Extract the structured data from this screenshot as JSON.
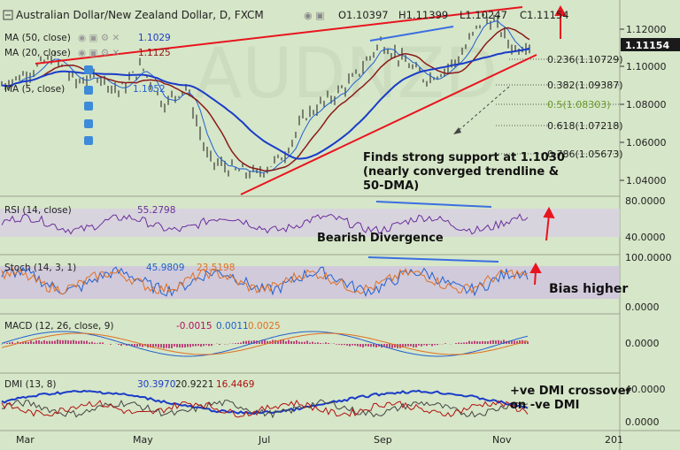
{
  "header": {
    "title": "Australian Dollar/New Zealand Dollar, D, FXCM",
    "ohlc": [
      "O1.10397",
      "H1.11399",
      "L1.10247",
      "C1.11154"
    ]
  },
  "ma_legend": [
    {
      "label": "MA (50, close)",
      "value": "1.1029",
      "color": "#1a3cc8"
    },
    {
      "label": "MA (20, close)",
      "value": "1.1125",
      "color": "#8b1a1a"
    },
    {
      "label": "MA (5, close)",
      "value": "1.1052",
      "color": "#2060d0"
    }
  ],
  "price_axis": {
    "ticks": [
      "1.12000",
      "1.10000",
      "1.08000",
      "1.06000",
      "1.04000"
    ],
    "last_price": "1.11154"
  },
  "fib_levels": [
    {
      "label": "0.236(1.10729)"
    },
    {
      "label": "0.382(1.09387)"
    },
    {
      "label": "0.5(1.08303)"
    },
    {
      "label": "0.618(1.07218)"
    },
    {
      "label": "0.786(1.05673)"
    }
  ],
  "annotations": {
    "support_text": [
      "Finds strong support at 1.1030",
      "(nearly converged trendline &",
      "50-DMA)"
    ],
    "divergence": "Bearish Divergence",
    "bias": "Bias higher",
    "dmi_text": [
      "+ve DMI crossover",
      "on -ve DMI"
    ]
  },
  "rsi": {
    "label": "RSI (14, close)",
    "value": "55.2798",
    "ticks": [
      "80.0000",
      "40.0000"
    ]
  },
  "stoch": {
    "label": "Stoch (14, 3, 1)",
    "values": [
      "45.9809",
      "23.5198"
    ],
    "ticks": [
      "100.0000",
      "0.0000"
    ]
  },
  "macd": {
    "label": "MACD (12, 26, close, 9)",
    "values": [
      "-0.0015",
      "0.0011",
      "0.0025"
    ],
    "ticks": [
      "0.0000"
    ]
  },
  "dmi": {
    "label": "DMI (13, 8)",
    "values": [
      "30.3970",
      "20.9221",
      "16.4469"
    ],
    "ticks": [
      "40.0000",
      "0.0000"
    ]
  },
  "time_axis": [
    "Mar",
    "May",
    "Jul",
    "Sep",
    "Nov",
    "201"
  ],
  "chart_data": {
    "type": "line",
    "x": [
      "Mar",
      "May",
      "Jul",
      "Sep",
      "Nov"
    ],
    "series": [
      {
        "name": "AUD/NZD close",
        "values": [
          1.094,
          1.082,
          1.04,
          1.105,
          1.1115
        ]
      },
      {
        "name": "MA (50, close)",
        "values": [
          1.065,
          1.086,
          1.056,
          1.085,
          1.1029
        ]
      },
      {
        "name": "MA (20, close)",
        "values": [
          1.085,
          1.09,
          1.045,
          1.095,
          1.1125
        ]
      }
    ],
    "ylim": [
      1.03,
      1.13
    ],
    "ylabel": ""
  },
  "colors": {
    "background": "#d6e6c8",
    "price_bar": "#1a1a1a",
    "trendline": "#e8141e",
    "divergence_line": "#3a6fe0",
    "arrow": "#e8141e",
    "rsi_line": "#6a2f9a",
    "band": "#cfc3e0"
  }
}
